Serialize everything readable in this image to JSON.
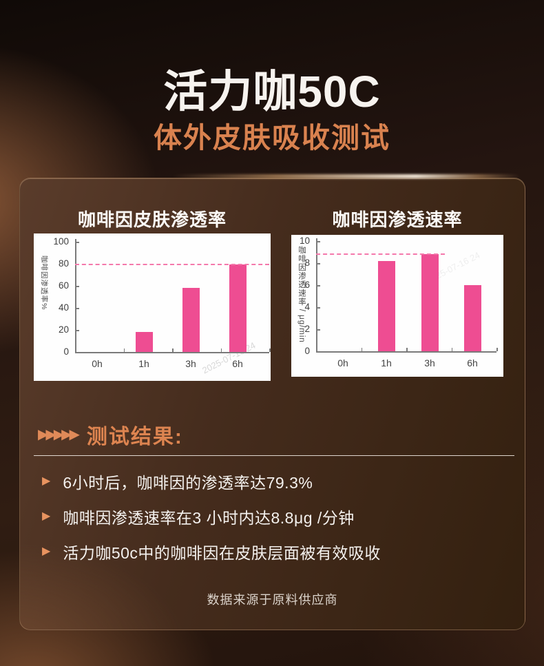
{
  "header": {
    "title": "活力咖50C",
    "subtitle": "体外皮肤吸收测试"
  },
  "chart_data": [
    {
      "type": "bar",
      "title": "咖啡因皮肤渗透率",
      "ylabel": "咖啡因渗透率%",
      "categories": [
        "0h",
        "1h",
        "3h",
        "6h"
      ],
      "values": [
        0,
        18,
        58,
        79.3
      ],
      "ylim": [
        0,
        100
      ],
      "yticks": [
        0,
        20,
        40,
        60,
        80,
        100
      ],
      "reference_line": 79.3,
      "grid": false,
      "legend": false,
      "bar_color": "#ee4d92",
      "dash_color": "#f478ab"
    },
    {
      "type": "bar",
      "title": "咖啡因渗透速率",
      "ylabel": "咖啡因渗透速率 / μg/min",
      "categories": [
        "0h",
        "1h",
        "3h",
        "6h"
      ],
      "values": [
        0,
        8.2,
        8.8,
        6
      ],
      "ylim": [
        0,
        10
      ],
      "yticks": [
        0,
        2,
        4,
        6,
        8,
        10
      ],
      "reference_line": 8.8,
      "grid": false,
      "legend": false,
      "bar_color": "#ee4d92",
      "dash_color": "#f478ab"
    }
  ],
  "results": {
    "heading_icon": "▶▶▶▶▶",
    "heading": "测试结果:",
    "bullet_icon": "▶",
    "bullets": [
      "6小时后，咖啡因的渗透率达79.3%",
      "咖啡因渗透速率在3 小时内达8.8μg /分钟",
      "活力咖50c中的咖啡因在皮肤层面被有效吸收"
    ]
  },
  "footer": {
    "source": "数据来源于原料供应商"
  },
  "watermark": "2025-07-16 24",
  "colors": {
    "accent_orange": "#d9824f",
    "bar_pink": "#ee4d92",
    "dash_pink": "#f478ab"
  }
}
